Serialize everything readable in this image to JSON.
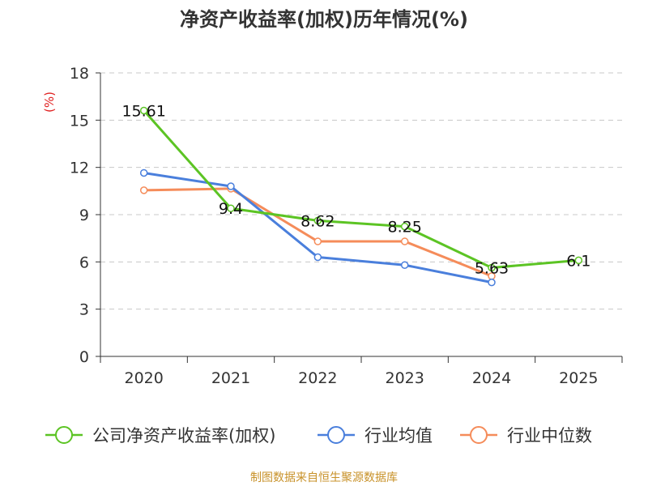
{
  "chart_data": {
    "type": "line",
    "title": "净资产收益率(加权)历年情况(%)",
    "ylabel": "(%)",
    "xlabel": "",
    "categories": [
      "2020",
      "2021",
      "2022",
      "2023",
      "2024",
      "2025"
    ],
    "ylim": [
      0,
      18
    ],
    "yticks": [
      0,
      3,
      6,
      9,
      12,
      15,
      18
    ],
    "grid": true,
    "legend_position": "bottom",
    "series": [
      {
        "name": "公司净资产收益率(加权)",
        "color": "#5cc424",
        "values": [
          15.61,
          9.4,
          8.62,
          8.25,
          5.63,
          6.1
        ],
        "labels": [
          "15.61",
          "9.4",
          "8.62",
          "8.25",
          "5.63",
          "6.1"
        ]
      },
      {
        "name": "行业均值",
        "color": "#4a7fdc",
        "values": [
          11.65,
          10.8,
          6.3,
          5.8,
          4.7,
          null
        ]
      },
      {
        "name": "行业中位数",
        "color": "#f58c5a",
        "values": [
          10.55,
          10.65,
          7.3,
          7.3,
          5.1,
          null
        ]
      }
    ],
    "source": "制图数据来自恒生聚源数据库"
  }
}
